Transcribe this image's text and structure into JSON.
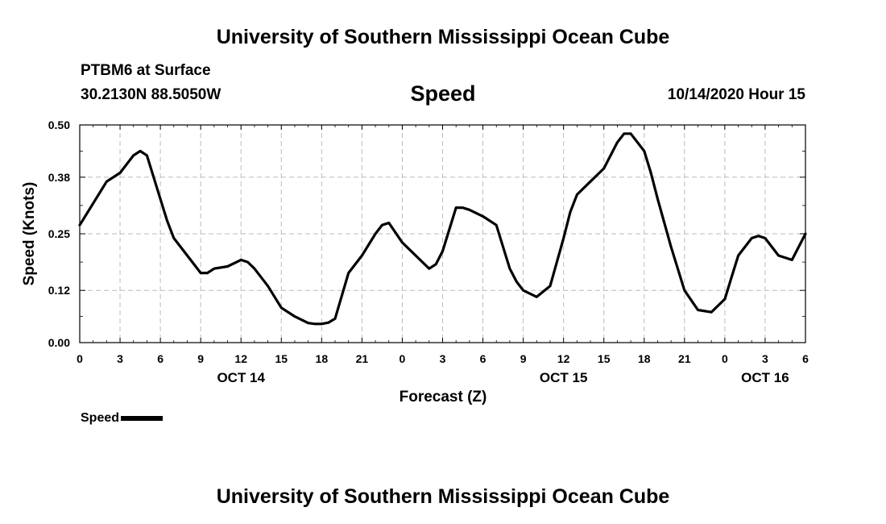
{
  "header": {
    "title": "University of Southern Mississippi Ocean Cube",
    "station": "PTBM6 at Surface",
    "coordinates": "30.2130N 88.5050W",
    "variable": "Speed",
    "run_time": "10/14/2020 Hour 15"
  },
  "footer": {
    "title": "University of Southern Mississippi Ocean Cube"
  },
  "legend": {
    "label": "Speed",
    "placement": "bottom-left"
  },
  "chart_data": {
    "type": "line",
    "xlabel": "Forecast (Z)",
    "ylabel": "Speed (Knots)",
    "xlim": [
      0,
      54
    ],
    "ylim": [
      0,
      0.5
    ],
    "grid": true,
    "y_ticks": [
      0,
      0.12,
      0.25,
      0.38,
      0.5
    ],
    "y_tick_labels": [
      "0.00",
      "0.12",
      "0.25",
      "0.38",
      "0.50"
    ],
    "x_ticks": [
      0,
      3,
      6,
      9,
      12,
      15,
      18,
      21,
      24,
      27,
      30,
      33,
      36,
      39,
      42,
      45,
      48,
      51,
      54
    ],
    "x_tick_labels": [
      "0",
      "3",
      "6",
      "9",
      "12",
      "15",
      "18",
      "21",
      "0",
      "3",
      "6",
      "9",
      "12",
      "15",
      "18",
      "21",
      "0",
      "3",
      "6"
    ],
    "date_labels": [
      {
        "x": 12,
        "label": "OCT 14"
      },
      {
        "x": 36,
        "label": "OCT 15"
      },
      {
        "x": 51,
        "label": "OCT 16"
      }
    ],
    "series": [
      {
        "name": "Speed",
        "color": "#000000",
        "x": [
          0,
          1,
          2,
          3,
          4,
          4.5,
          5,
          6,
          6.5,
          7,
          8,
          9,
          9.5,
          10,
          11,
          12,
          12.5,
          13,
          14,
          15,
          16,
          17,
          17.5,
          18,
          18.5,
          19,
          20,
          21,
          22,
          22.5,
          23,
          24,
          25,
          26,
          26.5,
          27,
          28,
          28.5,
          29,
          30,
          31,
          32,
          32.5,
          33,
          34,
          35,
          36,
          36.5,
          37,
          38,
          39,
          40,
          40.5,
          41,
          42,
          42.5,
          43,
          44,
          45,
          46,
          47,
          48,
          48.5,
          49,
          50,
          50.5,
          51,
          52,
          53,
          54
        ],
        "y": [
          0.27,
          0.32,
          0.37,
          0.39,
          0.43,
          0.44,
          0.43,
          0.33,
          0.28,
          0.24,
          0.2,
          0.16,
          0.16,
          0.17,
          0.175,
          0.19,
          0.185,
          0.17,
          0.13,
          0.08,
          0.06,
          0.045,
          0.043,
          0.043,
          0.046,
          0.055,
          0.16,
          0.2,
          0.25,
          0.27,
          0.275,
          0.23,
          0.2,
          0.17,
          0.18,
          0.21,
          0.31,
          0.31,
          0.305,
          0.29,
          0.27,
          0.17,
          0.14,
          0.12,
          0.105,
          0.13,
          0.24,
          0.3,
          0.34,
          0.37,
          0.4,
          0.46,
          0.48,
          0.48,
          0.44,
          0.39,
          0.33,
          0.22,
          0.12,
          0.075,
          0.07,
          0.1,
          0.15,
          0.2,
          0.24,
          0.245,
          0.24,
          0.2,
          0.19,
          0.25
        ]
      }
    ]
  }
}
